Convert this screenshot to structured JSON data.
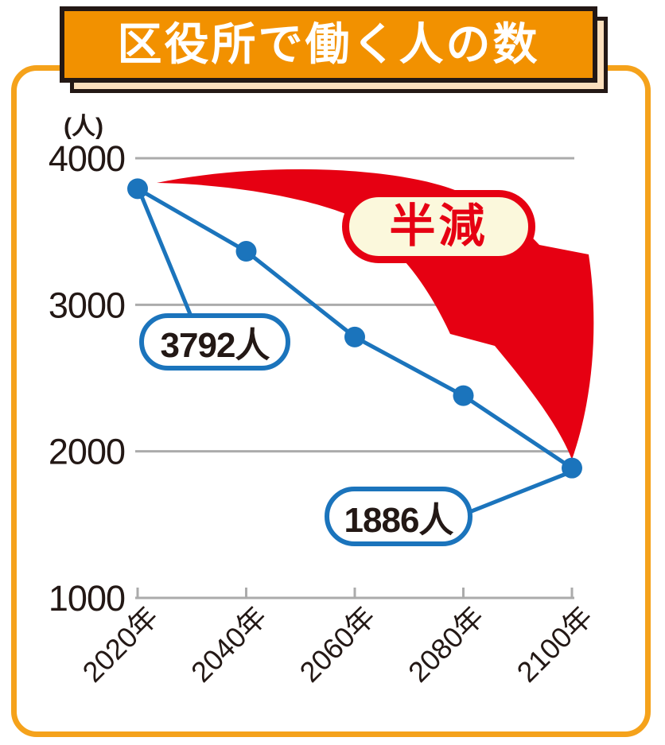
{
  "header": {
    "title": "区役所で働く人の数"
  },
  "chart_data": {
    "type": "line",
    "title": "区役所で働く人の数",
    "categories": [
      "2020年",
      "2040年",
      "2060年",
      "2080年",
      "2100年"
    ],
    "values": [
      3792,
      3365,
      2780,
      2380,
      1886
    ],
    "value_labels": {
      "2020年": "3792人",
      "2100年": "1886人"
    },
    "ylabel": "(人)",
    "y_ticks": [
      4000,
      3000,
      2000,
      1000
    ],
    "ylim": [
      1000,
      4000
    ],
    "grid": true,
    "legend": false,
    "annotation": "半減"
  },
  "annotations": {
    "halved": "半減",
    "start_value": "3792人",
    "end_value": "1886人"
  },
  "labels": {
    "unit": "(人)"
  },
  "colors": {
    "banner_orange": "#F29100",
    "card_border_orange": "#F5A21B",
    "outline_dark": "#231815",
    "banner_shadow_cream": "#FBDFBD",
    "arrow_red": "#E60012",
    "badge_cream": "#FBF8DC",
    "series_blue": "#1B74BC",
    "grid_gray": "#ABABAB",
    "text_dark": "#231815",
    "background_white": "#FFFFFF"
  }
}
